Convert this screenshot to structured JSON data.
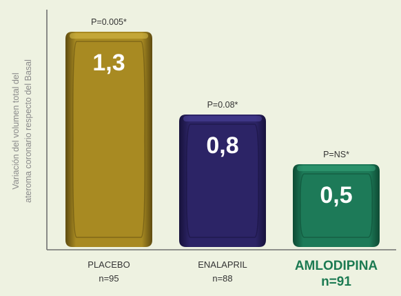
{
  "chart_data": {
    "type": "bar",
    "categories": [
      "PLACEBO",
      "ENALAPRIL",
      "AMLODIPINA"
    ],
    "n_labels": [
      "n=95",
      "n=88",
      "n=91"
    ],
    "values": [
      1.3,
      0.8,
      0.5
    ],
    "value_labels": [
      "1,3",
      "0,8",
      "0,5"
    ],
    "p_values": [
      "P=0.005*",
      "P=0.08*",
      "P=NS*"
    ],
    "ylabel_line1": "Variación del volumen total del",
    "ylabel_line2": "ateroma coronario respecto del Basal",
    "ylim": [
      0,
      1.45
    ],
    "grid": false,
    "highlight_category": "AMLODIPINA",
    "colors": {
      "background": "#eef2e1",
      "axis": "#6f6f6f",
      "label_text": "#333333",
      "highlight_text": "#1c7a52",
      "ylabel_text": "#8a8a8a",
      "bars": [
        "#a88a22",
        "#2c2466",
        "#1d7a58"
      ],
      "bars_dark": [
        "#5f4c10",
        "#17123c",
        "#0e4a33"
      ],
      "bars_light": [
        "#d9bd4a",
        "#4f45a0",
        "#36a57b"
      ]
    }
  }
}
